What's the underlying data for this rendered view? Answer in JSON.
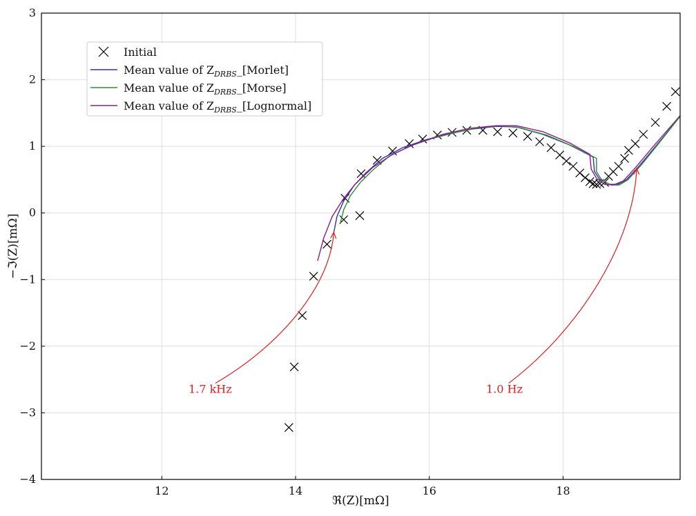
{
  "chart_data": {
    "type": "scatter",
    "title": "",
    "xlabel": "ℜ(Z)[mΩ]",
    "ylabel": "−ℑ(Z)[mΩ]",
    "xlim": [
      10.2,
      19.75
    ],
    "ylim": [
      -4,
      3
    ],
    "x_ticks": [
      12,
      14,
      16,
      18
    ],
    "y_ticks": [
      -4,
      -3,
      -2,
      -1,
      0,
      1,
      2,
      3
    ],
    "grid": true,
    "legend_position": "top-left",
    "series": [
      {
        "name": "Initial",
        "kind": "marker-x",
        "color": "#000000",
        "points": [
          [
            13.9,
            -3.22
          ],
          [
            13.98,
            -2.31
          ],
          [
            14.1,
            -1.54
          ],
          [
            14.27,
            -0.95
          ],
          [
            14.47,
            -0.47
          ],
          [
            14.72,
            -0.1
          ],
          [
            14.74,
            0.22
          ],
          [
            14.96,
            -0.04
          ],
          [
            14.98,
            0.59
          ],
          [
            15.22,
            0.79
          ],
          [
            15.45,
            0.93
          ],
          [
            15.7,
            1.04
          ],
          [
            15.9,
            1.11
          ],
          [
            16.12,
            1.17
          ],
          [
            16.34,
            1.21
          ],
          [
            16.56,
            1.24
          ],
          [
            16.8,
            1.24
          ],
          [
            17.02,
            1.22
          ],
          [
            17.25,
            1.2
          ],
          [
            17.47,
            1.15
          ],
          [
            17.65,
            1.07
          ],
          [
            17.82,
            0.98
          ],
          [
            17.95,
            0.87
          ],
          [
            18.05,
            0.78
          ],
          [
            18.15,
            0.7
          ],
          [
            18.25,
            0.6
          ],
          [
            18.33,
            0.53
          ],
          [
            18.4,
            0.47
          ],
          [
            18.45,
            0.44
          ],
          [
            18.5,
            0.43
          ],
          [
            18.55,
            0.44
          ],
          [
            18.62,
            0.46
          ],
          [
            18.68,
            0.55
          ],
          [
            18.75,
            0.62
          ],
          [
            18.83,
            0.7
          ],
          [
            18.92,
            0.82
          ],
          [
            18.98,
            0.94
          ],
          [
            19.08,
            1.04
          ],
          [
            19.2,
            1.18
          ],
          [
            19.38,
            1.36
          ],
          [
            19.55,
            1.6
          ],
          [
            19.68,
            1.82
          ]
        ]
      },
      {
        "name": "Mean value of Z_DRBS_[Morlet]",
        "kind": "line",
        "color": "#3030a8",
        "points": [
          [
            14.57,
            -0.3
          ],
          [
            14.62,
            -0.05
          ],
          [
            14.72,
            0.18
          ],
          [
            14.88,
            0.42
          ],
          [
            15.05,
            0.6
          ],
          [
            15.3,
            0.82
          ],
          [
            15.6,
            0.98
          ],
          [
            15.95,
            1.1
          ],
          [
            16.3,
            1.19
          ],
          [
            16.65,
            1.26
          ],
          [
            17.0,
            1.3
          ],
          [
            17.3,
            1.29
          ],
          [
            17.7,
            1.18
          ],
          [
            18.1,
            1.02
          ],
          [
            18.45,
            0.84
          ],
          [
            18.47,
            0.62
          ],
          [
            18.55,
            0.5
          ],
          [
            18.7,
            0.43
          ],
          [
            18.82,
            0.43
          ],
          [
            18.95,
            0.5
          ],
          [
            19.15,
            0.72
          ],
          [
            19.4,
            1.02
          ],
          [
            19.75,
            1.45
          ]
        ]
      },
      {
        "name": "Mean value of Z_DRBS_[Morse]",
        "kind": "line",
        "color": "#2e8b2e",
        "points": [
          [
            14.67,
            -0.15
          ],
          [
            14.72,
            0.05
          ],
          [
            14.82,
            0.26
          ],
          [
            14.97,
            0.46
          ],
          [
            15.15,
            0.64
          ],
          [
            15.4,
            0.85
          ],
          [
            15.7,
            1.0
          ],
          [
            16.05,
            1.12
          ],
          [
            16.4,
            1.21
          ],
          [
            16.75,
            1.28
          ],
          [
            17.05,
            1.31
          ],
          [
            17.35,
            1.28
          ],
          [
            17.75,
            1.17
          ],
          [
            18.15,
            1.0
          ],
          [
            18.5,
            0.82
          ],
          [
            18.5,
            0.62
          ],
          [
            18.58,
            0.49
          ],
          [
            18.72,
            0.42
          ],
          [
            18.84,
            0.42
          ],
          [
            18.97,
            0.5
          ],
          [
            19.17,
            0.72
          ],
          [
            19.42,
            1.03
          ],
          [
            19.75,
            1.45
          ]
        ]
      },
      {
        "name": "Mean value of Z_DRBS_[Lognormal]",
        "kind": "line",
        "color": "#8b1a8b",
        "points": [
          [
            14.33,
            -0.72
          ],
          [
            14.42,
            -0.38
          ],
          [
            14.55,
            -0.05
          ],
          [
            14.72,
            0.22
          ],
          [
            14.9,
            0.44
          ],
          [
            15.15,
            0.68
          ],
          [
            15.45,
            0.88
          ],
          [
            15.8,
            1.04
          ],
          [
            16.2,
            1.18
          ],
          [
            16.6,
            1.27
          ],
          [
            17.0,
            1.31
          ],
          [
            17.3,
            1.31
          ],
          [
            17.7,
            1.22
          ],
          [
            18.1,
            1.05
          ],
          [
            18.4,
            0.88
          ],
          [
            18.42,
            0.66
          ],
          [
            18.5,
            0.52
          ],
          [
            18.62,
            0.43
          ],
          [
            18.75,
            0.42
          ],
          [
            18.9,
            0.48
          ],
          [
            19.1,
            0.7
          ],
          [
            19.35,
            1.0
          ],
          [
            19.75,
            1.46
          ]
        ]
      }
    ],
    "annotations": [
      {
        "text": "1.7 kHz",
        "color": "#e31a1c",
        "text_at": [
          12.4,
          -2.7
        ],
        "arrow_to": [
          14.57,
          -0.3
        ]
      },
      {
        "text": "1.0 Hz",
        "color": "#e31a1c",
        "text_at": [
          16.85,
          -2.7
        ],
        "arrow_to": [
          19.1,
          0.66
        ]
      }
    ]
  }
}
